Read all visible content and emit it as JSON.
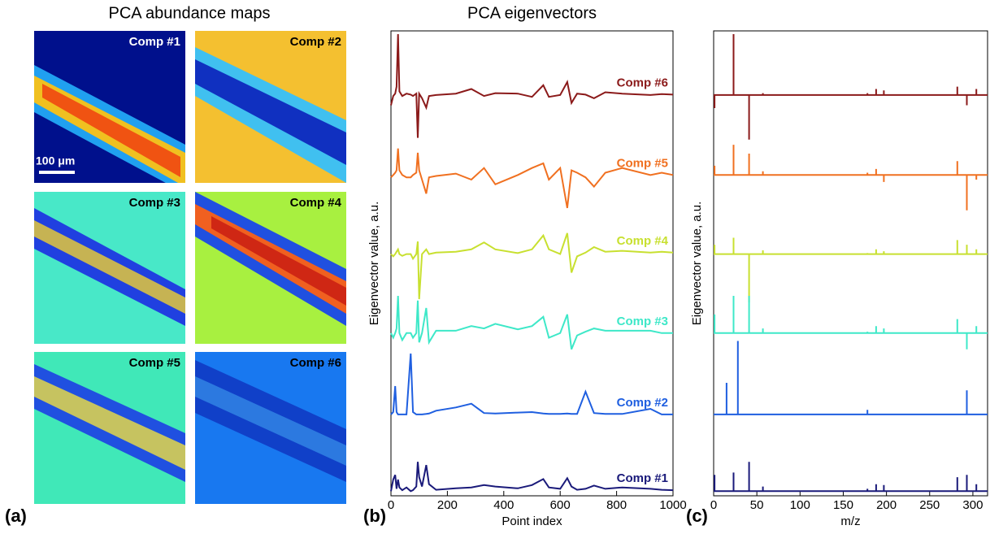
{
  "panel_a": {
    "title": "PCA abundance maps",
    "maps": [
      "Comp #1",
      "Comp #2",
      "Comp #3",
      "Comp #4",
      "Comp #5",
      "Comp #6"
    ],
    "scale_bar": "100 μm",
    "label": "(a)"
  },
  "chart_data": [
    {
      "type": "line",
      "title": "PCA eigenvectors",
      "panel_label": "(b)",
      "x_label": "Point index",
      "y_label": "Eigenvector value, a.u.",
      "xlim": [
        0,
        1000
      ],
      "xticks": [
        0,
        200,
        400,
        600,
        800,
        1000
      ],
      "ylim": [
        0,
        100
      ],
      "x": [
        0,
        8,
        15,
        20,
        25,
        30,
        40,
        55,
        70,
        78,
        90,
        95,
        100,
        110,
        125,
        135,
        160,
        230,
        285,
        330,
        370,
        450,
        500,
        540,
        560,
        600,
        625,
        640,
        660,
        690,
        720,
        760,
        820,
        920,
        960,
        1000
      ],
      "series": [
        {
          "name": "Comp #6",
          "color": "#8b1a1a",
          "values": [
            84,
            86,
            86.5,
            88,
            99.3,
            87,
            86,
            86.5,
            86.3,
            86,
            86.5,
            77,
            86.5,
            85.5,
            83.5,
            86,
            86.2,
            86.5,
            87.5,
            86,
            86.6,
            86.5,
            85.8,
            88.3,
            85.8,
            86.2,
            89,
            84.5,
            86.5,
            86.3,
            85.5,
            86.8,
            86.5,
            86.2,
            86.4,
            86.3
          ]
        },
        {
          "name": "Comp #5",
          "color": "#f07020",
          "values": [
            68.5,
            69,
            69.5,
            70,
            74.7,
            70,
            69,
            68.5,
            68.5,
            69,
            69.5,
            73.8,
            70,
            68,
            65,
            68.5,
            68.8,
            69.3,
            68,
            70.5,
            67,
            69,
            70.5,
            71.5,
            68,
            70.5,
            61.9,
            70,
            69.5,
            68.5,
            66.5,
            69.5,
            70.5,
            69,
            69.5,
            69
          ]
        },
        {
          "name": "Comp #4",
          "color": "#c8e030",
          "values": [
            52,
            51.5,
            52,
            52.5,
            53,
            52,
            51.6,
            52,
            52,
            51,
            52,
            54.7,
            42.3,
            52,
            53,
            52,
            52.3,
            52.5,
            53,
            54.5,
            53,
            52.2,
            53,
            56,
            53,
            52,
            56.5,
            48,
            51.5,
            52.3,
            53.5,
            52.5,
            52.7,
            52.3,
            52.5,
            52.3
          ]
        },
        {
          "name": "Comp #3",
          "color": "#3ee8c8",
          "values": [
            35,
            34,
            35,
            36,
            43,
            35,
            33.5,
            35,
            35,
            34,
            35,
            42,
            33,
            35,
            40.4,
            33,
            35.5,
            35.5,
            36.5,
            36,
            37,
            35.8,
            36.5,
            38.5,
            34,
            35,
            39,
            31.5,
            34.5,
            35.3,
            36,
            35.5,
            35.5,
            35.5,
            35,
            35
          ]
        },
        {
          "name": "Comp #2",
          "color": "#1f5fe0",
          "values": [
            17.5,
            18,
            23.6,
            18,
            17.5,
            17.5,
            17.5,
            17.5,
            30.6,
            18,
            17.5,
            17.5,
            17.5,
            17.5,
            17.6,
            17.7,
            18.3,
            19,
            19.8,
            17.8,
            17.7,
            17.9,
            18,
            17.7,
            17.6,
            17.6,
            17.7,
            17.6,
            17.6,
            22.4,
            17.8,
            17.6,
            17.6,
            18.7,
            17.5,
            17.5
          ]
        },
        {
          "name": "Comp #1",
          "color": "#1a1a7a",
          "values": [
            1,
            3.5,
            4.5,
            1.5,
            3.5,
            1.8,
            1.2,
            1.8,
            1,
            1.2,
            2,
            7.3,
            4,
            2,
            6.6,
            2.5,
            1.3,
            1.6,
            1.8,
            2.3,
            2,
            1.6,
            2.3,
            3.6,
            1.8,
            1.5,
            3.8,
            2,
            1.3,
            1.5,
            2.2,
            1.5,
            1.8,
            1.5,
            1.3,
            1.2
          ]
        }
      ]
    },
    {
      "type": "line",
      "panel_label": "(c)",
      "x_label": "m/z",
      "y_label": "Eigenvector value, a.u.",
      "xlim": [
        0,
        317
      ],
      "xticks": [
        0,
        50,
        100,
        150,
        200,
        250,
        300
      ],
      "ylim": [
        0,
        100
      ],
      "x": [
        0,
        1,
        1,
        1,
        15,
        15,
        15,
        23,
        23,
        23,
        28,
        28,
        28,
        41,
        41,
        41,
        57,
        57,
        57,
        178,
        178,
        178,
        188,
        188,
        188,
        197,
        197,
        197,
        282,
        282,
        282,
        293,
        293,
        293,
        304,
        304,
        304,
        317
      ],
      "series": [
        {
          "color": "#8b1a1a",
          "values": [
            86.2,
            86.2,
            83.4,
            86.2,
            86.2,
            86.2,
            86.2,
            86.2,
            99.3,
            86.2,
            86.2,
            86.2,
            86.2,
            86.2,
            76.6,
            86.2,
            86.2,
            86.6,
            86.2,
            86.2,
            86.6,
            86.2,
            86.2,
            87.5,
            86.2,
            86.2,
            87.2,
            86.2,
            86.2,
            88,
            86.2,
            86.2,
            84,
            86.2,
            86.2,
            87.5,
            86.2,
            86.2
          ]
        },
        {
          "color": "#f07020",
          "values": [
            69,
            69,
            71,
            69,
            69,
            69,
            69,
            69,
            75.5,
            69,
            69,
            69,
            69,
            69,
            73.6,
            69,
            69,
            69.8,
            69,
            69,
            69.5,
            69,
            69,
            70.3,
            69,
            69,
            67.5,
            69,
            69,
            72,
            69,
            69,
            61.4,
            69,
            69,
            68,
            69,
            69
          ]
        },
        {
          "color": "#c8e030",
          "values": [
            52,
            52,
            54,
            52,
            52,
            52,
            52,
            52,
            55.5,
            52,
            52,
            52,
            52,
            52,
            41.6,
            52,
            52,
            52.8,
            52,
            52,
            52.2,
            52,
            52,
            53,
            52,
            52,
            52.6,
            52,
            52,
            55,
            52,
            52,
            54,
            52,
            52,
            53,
            52,
            52
          ]
        },
        {
          "color": "#3ee8c8",
          "values": [
            35,
            35,
            39,
            35,
            35,
            35,
            35,
            35,
            43,
            35,
            35,
            35,
            35,
            35,
            43,
            35,
            35,
            36,
            35,
            35,
            35.3,
            35,
            35,
            36.5,
            35,
            35,
            36,
            35,
            35,
            38,
            35,
            35,
            31.5,
            35,
            35,
            36.5,
            35,
            35
          ]
        },
        {
          "color": "#1f5fe0",
          "values": [
            17.5,
            17.5,
            17.5,
            17.5,
            17.5,
            24.3,
            17.5,
            17.5,
            17.5,
            17.5,
            17.5,
            33.3,
            17.5,
            17.5,
            17.5,
            17.5,
            17.5,
            17.5,
            17.5,
            17.5,
            18.5,
            17.5,
            17.5,
            17.5,
            17.5,
            17.5,
            17.5,
            17.5,
            17.5,
            17.5,
            17.5,
            17.5,
            22.7,
            17.5,
            17.5,
            17.5,
            17.5,
            17.5
          ]
        },
        {
          "color": "#1a1a7a",
          "values": [
            1,
            1,
            4.5,
            1,
            1,
            1,
            1,
            1,
            5,
            1,
            1,
            1,
            1,
            1,
            7.3,
            1,
            1,
            2,
            1,
            1,
            1.5,
            1,
            1,
            2.5,
            1,
            1,
            2.3,
            1,
            1,
            4,
            1,
            1,
            4.5,
            1,
            1,
            2.5,
            1,
            1
          ]
        }
      ]
    }
  ]
}
